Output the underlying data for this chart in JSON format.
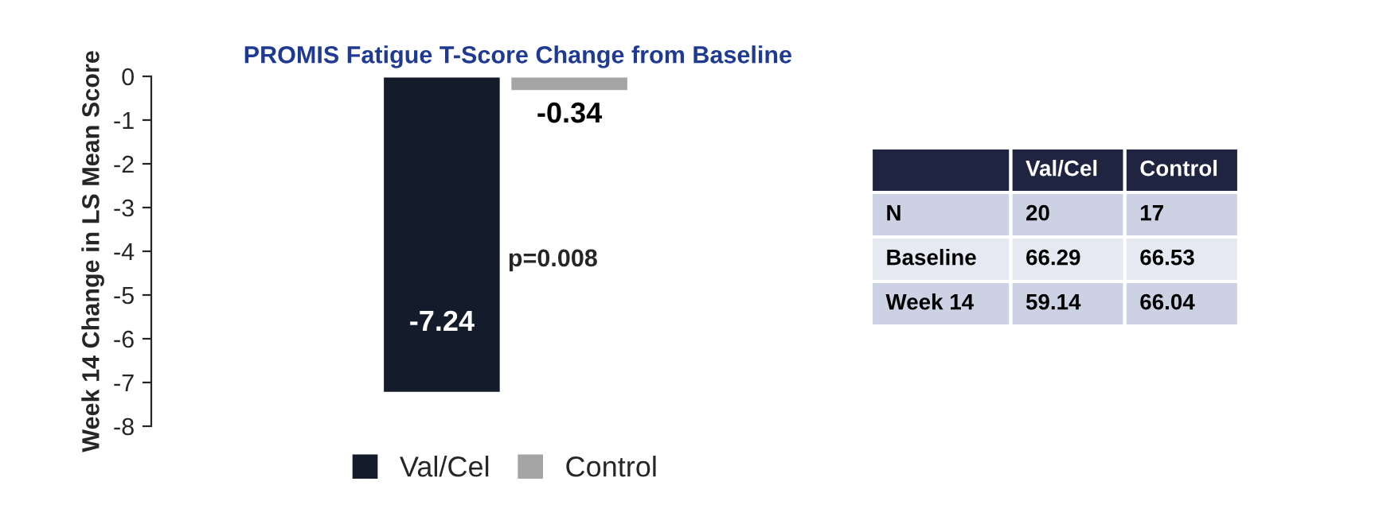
{
  "chart_data": [
    {
      "type": "bar",
      "title": "PROMIS Fatigue T-Score Change from Baseline",
      "ylabel": "Week 14 Change in LS Mean Score",
      "categories": [
        null
      ],
      "series": [
        {
          "name": "Val/Cel",
          "color": "#141c2b",
          "values": [
            -7.24
          ]
        },
        {
          "name": "Control",
          "color": "#a5a5a5",
          "values": [
            -0.34
          ]
        }
      ],
      "ylim": [
        -8,
        0
      ],
      "yticks": [
        0,
        -1,
        -2,
        -3,
        -4,
        -5,
        -6,
        -7,
        -8
      ],
      "data_labels": true,
      "legend": "bottom",
      "grid": false,
      "annotations": [
        "p=0.008"
      ]
    },
    {
      "type": "heatmap",
      "categories": [
        "Val/Cel",
        "Control"
      ],
      "y_categories": [
        "N",
        "Baseline",
        "Week 14"
      ],
      "cells": [
        [
          20,
          17
        ],
        [
          66.29,
          66.53
        ],
        [
          59.14,
          66.04
        ]
      ],
      "data_labels": true
    }
  ]
}
